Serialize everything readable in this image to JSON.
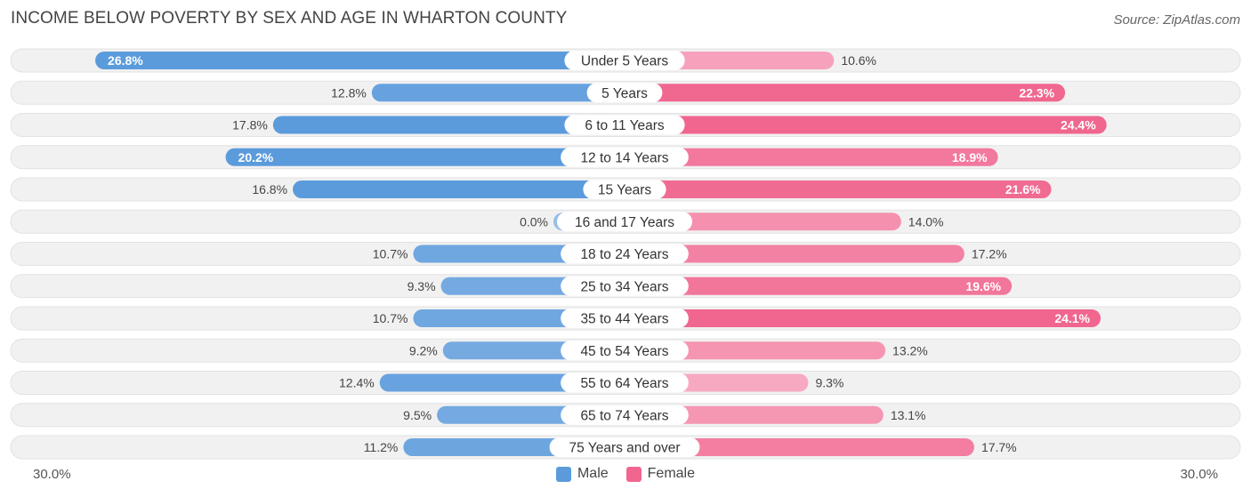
{
  "header": {
    "title": "INCOME BELOW POVERTY BY SEX AND AGE IN WHARTON COUNTY",
    "source": "Source: ZipAtlas.com"
  },
  "axis": {
    "left_label": "30.0%",
    "right_label": "30.0%"
  },
  "legend": {
    "male_label": "Male",
    "female_label": "Female",
    "male_color": "#5b9bdc",
    "female_color": "#f0668f"
  },
  "chart_data": {
    "type": "bar",
    "orientation": "diverging-horizontal",
    "title": "INCOME BELOW POVERTY BY SEX AND AGE IN WHARTON COUNTY",
    "max_value": 30.0,
    "categories": [
      "Under 5 Years",
      "5 Years",
      "6 to 11 Years",
      "12 to 14 Years",
      "15 Years",
      "16 and 17 Years",
      "18 to 24 Years",
      "25 to 34 Years",
      "35 to 44 Years",
      "45 to 54 Years",
      "55 to 64 Years",
      "65 to 74 Years",
      "75 Years and over"
    ],
    "series": [
      {
        "name": "Male",
        "values": [
          26.8,
          12.8,
          17.8,
          20.2,
          16.8,
          0.0,
          10.7,
          9.3,
          10.7,
          9.2,
          12.4,
          9.5,
          11.2
        ],
        "labels": [
          "26.8%",
          "12.8%",
          "17.8%",
          "20.2%",
          "16.8%",
          "0.0%",
          "10.7%",
          "9.3%",
          "10.7%",
          "9.2%",
          "12.4%",
          "9.5%",
          "11.2%"
        ]
      },
      {
        "name": "Female",
        "values": [
          10.6,
          22.3,
          24.4,
          18.9,
          21.6,
          14.0,
          17.2,
          19.6,
          24.1,
          13.2,
          9.3,
          13.1,
          17.7
        ],
        "labels": [
          "10.6%",
          "22.3%",
          "24.4%",
          "18.9%",
          "21.6%",
          "14.0%",
          "17.2%",
          "19.6%",
          "24.1%",
          "13.2%",
          "9.3%",
          "13.1%",
          "17.7%"
        ]
      }
    ]
  }
}
